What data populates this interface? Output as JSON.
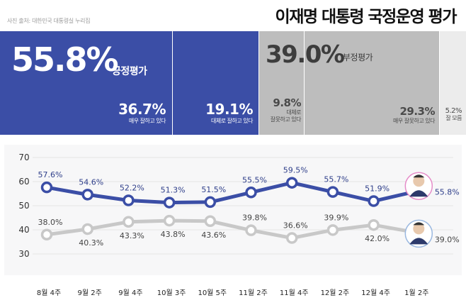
{
  "source": "사진 출처: 대한민국 대통령실 누리집",
  "title": "이재명 대통령 국정운영 평가",
  "header": {
    "positive": {
      "value": "55.8%",
      "label": "긍정평가"
    },
    "negative": {
      "value": "39.0%",
      "label": "부정평가"
    },
    "breakdown": [
      {
        "value": "36.7%",
        "label": "매우 잘하고 있다"
      },
      {
        "value": "19.1%",
        "label": "대체로 잘하고 있다"
      },
      {
        "value": "9.8%",
        "label_lines": [
          "대체로",
          "잘못하고 있다"
        ]
      },
      {
        "value": "29.3%",
        "label": "매우 잘못하고 있다"
      },
      {
        "value": "5.2%",
        "label": "잘 모름"
      }
    ]
  },
  "colors": {
    "positive": "#3b4ea6",
    "negative": "#bdbdbd",
    "unknown": "#ececec"
  },
  "chart_data": {
    "type": "line",
    "categories": [
      "8월 4주",
      "9월 2주",
      "9월 4주",
      "10월 3주",
      "10월 5주",
      "11월 2주",
      "11월 4주",
      "12월 2주",
      "12월 4주",
      "1월 2주"
    ],
    "series": [
      {
        "name": "긍정평가",
        "color": "#3b4ea6",
        "values": [
          57.6,
          54.6,
          52.2,
          51.3,
          51.5,
          55.5,
          59.5,
          55.7,
          51.9,
          55.8
        ]
      },
      {
        "name": "부정평가",
        "color": "#c8c8c8",
        "values": [
          38.0,
          40.3,
          43.3,
          43.8,
          43.6,
          39.8,
          36.6,
          39.9,
          42.0,
          39.0
        ]
      }
    ],
    "ylim": [
      30,
      70
    ],
    "yticks": [
      30,
      40,
      50,
      60,
      70
    ],
    "grid": true
  }
}
